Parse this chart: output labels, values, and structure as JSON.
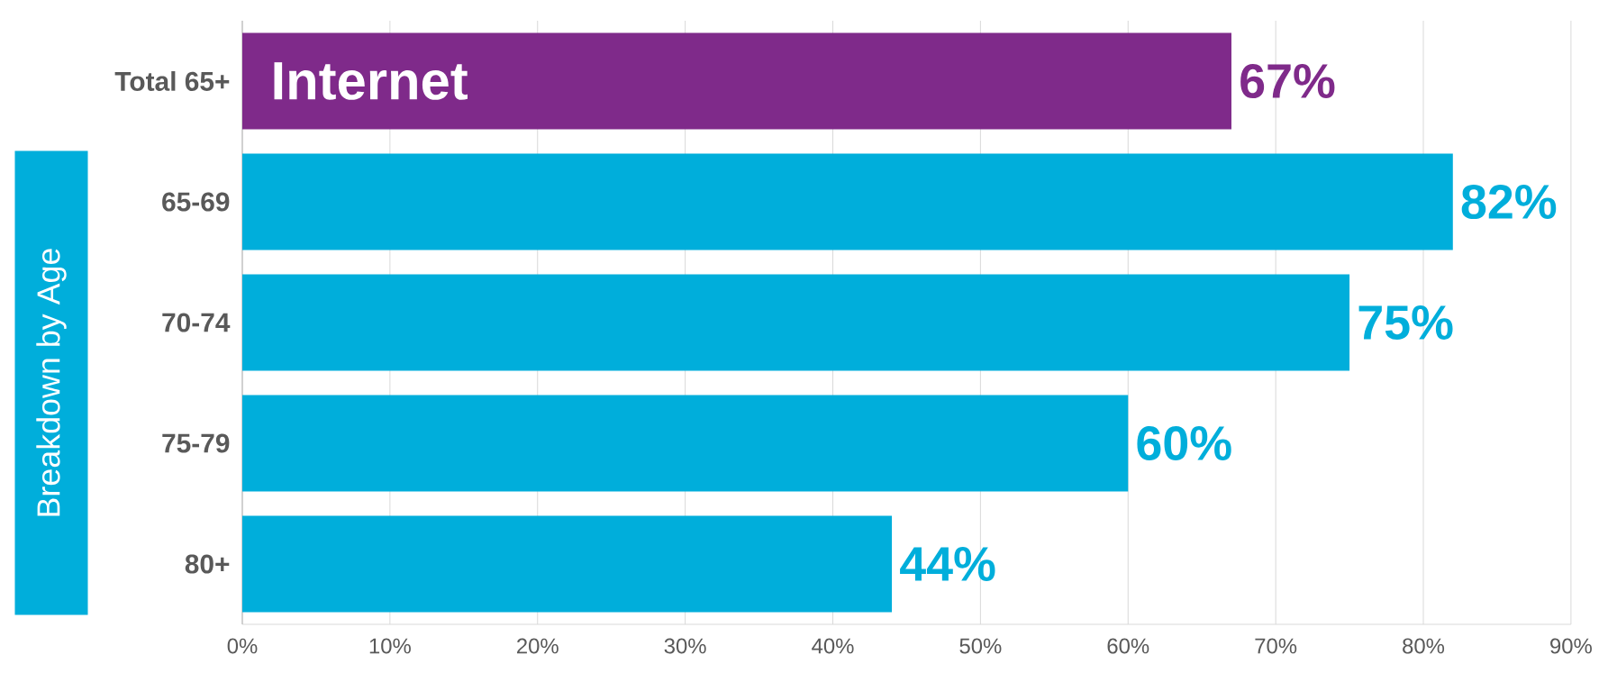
{
  "chart_data": {
    "type": "bar",
    "orientation": "horizontal",
    "categories": [
      "Total 65+",
      "65-69",
      "70-74",
      "75-79",
      "80+"
    ],
    "values": [
      67,
      82,
      75,
      60,
      44
    ],
    "colors": [
      "#7f2a8a",
      "#00aedb",
      "#00aedb",
      "#00aedb",
      "#00aedb"
    ],
    "value_labels": [
      "67%",
      "82%",
      "75%",
      "60%",
      "44%"
    ],
    "ylabel": "Breakdown by Age",
    "annotations": [
      "Internet"
    ],
    "xlim": [
      0,
      90
    ],
    "xticks": [
      {
        "value": 0,
        "label": "0%"
      },
      {
        "value": 10,
        "label": "10%"
      },
      {
        "value": 20,
        "label": "20%"
      },
      {
        "value": 30,
        "label": "30%"
      },
      {
        "value": 40,
        "label": "40%"
      },
      {
        "value": 50,
        "label": "50%"
      },
      {
        "value": 60,
        "label": "60%"
      },
      {
        "value": 70,
        "label": "70%"
      },
      {
        "value": 80,
        "label": "80%"
      },
      {
        "value": 90,
        "label": "90%"
      }
    ],
    "grid": "x"
  }
}
